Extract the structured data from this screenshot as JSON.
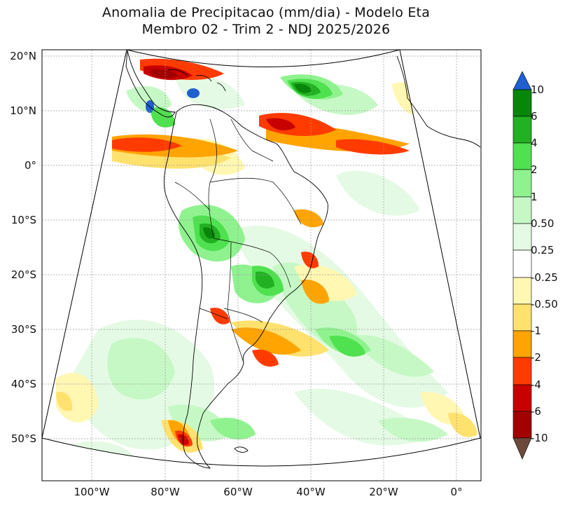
{
  "title": {
    "line1": "Anomalia de Precipitacao (mm/dia) - Modelo Eta",
    "line2": "Membro 02 - Trim 2 - NDJ 2025/2026"
  },
  "map": {
    "variable": "precipitation anomaly",
    "units": "mm/dia",
    "lat_ticks": [
      "20°N",
      "10°N",
      "0°",
      "10°S",
      "20°S",
      "30°S",
      "40°S",
      "50°S"
    ],
    "lon_ticks": [
      "100°W",
      "80°W",
      "60°W",
      "40°W",
      "20°W",
      "0°"
    ],
    "gridlines": true
  },
  "colorbar": {
    "tick_labels": [
      "10",
      "6",
      "4",
      "2",
      "1",
      "0.50",
      "0.25",
      "-0.25",
      "-0.50",
      "-1",
      "-2",
      "-4",
      "-6",
      "-10"
    ],
    "colors": {
      "extend_max": "#1f5fd0",
      "c_6_10": "#08860a",
      "c_4_6": "#22b122",
      "c_2_4": "#4fe14f",
      "c_1_2": "#8ff28f",
      "c_050_1": "#c6f8c6",
      "c_025_050": "#e4fae4",
      "c_neutral": "#ffffff",
      "c_m050_m025": "#fff7b2",
      "c_m1_m050": "#ffe16e",
      "c_m2_m1": "#ffa400",
      "c_m4_m2": "#ff3b00",
      "c_m6_m4": "#c80000",
      "c_m10_m6": "#a30000",
      "extend_min": "#6b4a3c"
    }
  }
}
